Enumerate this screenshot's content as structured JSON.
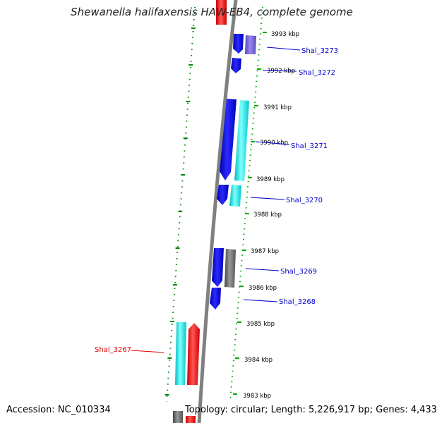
{
  "title": "Shewanella halifaxensis HAW-EB4, complete genome",
  "footer": {
    "accession": "Accession: NC_010334",
    "summary": "Topology: circular; Length: 5,226,917 bp; Genes: 4,433"
  },
  "kbp_marks": [
    "3993 kbp",
    "3992 kbp",
    "3991 kbp",
    "3990 kbp",
    "3989 kbp",
    "3988 kbp",
    "3987 kbp",
    "3986 kbp",
    "3985 kbp",
    "3984 kbp",
    "3983 kbp"
  ],
  "genes": [
    {
      "label": "Shal_3273",
      "color": "#0000cc"
    },
    {
      "label": "Shal_3272",
      "color": "#0000cc"
    },
    {
      "label": "Shal_3271",
      "color": "#0000cc"
    },
    {
      "label": "Shal_3270",
      "color": "#0000cc"
    },
    {
      "label": "Shal_3269",
      "color": "#0000cc"
    },
    {
      "label": "Shal_3268",
      "color": "#0000cc"
    },
    {
      "label": "Shal_3267",
      "color": "#dd0000"
    }
  ],
  "colors": {
    "forward_cds": "#0000ee",
    "cog_cyan": "#00eeee",
    "cog_purple": "#7766dd",
    "cog_gray": "#666666",
    "rna_red": "#ff0000",
    "backbone": "#808080",
    "gc_dots": "#008800"
  }
}
